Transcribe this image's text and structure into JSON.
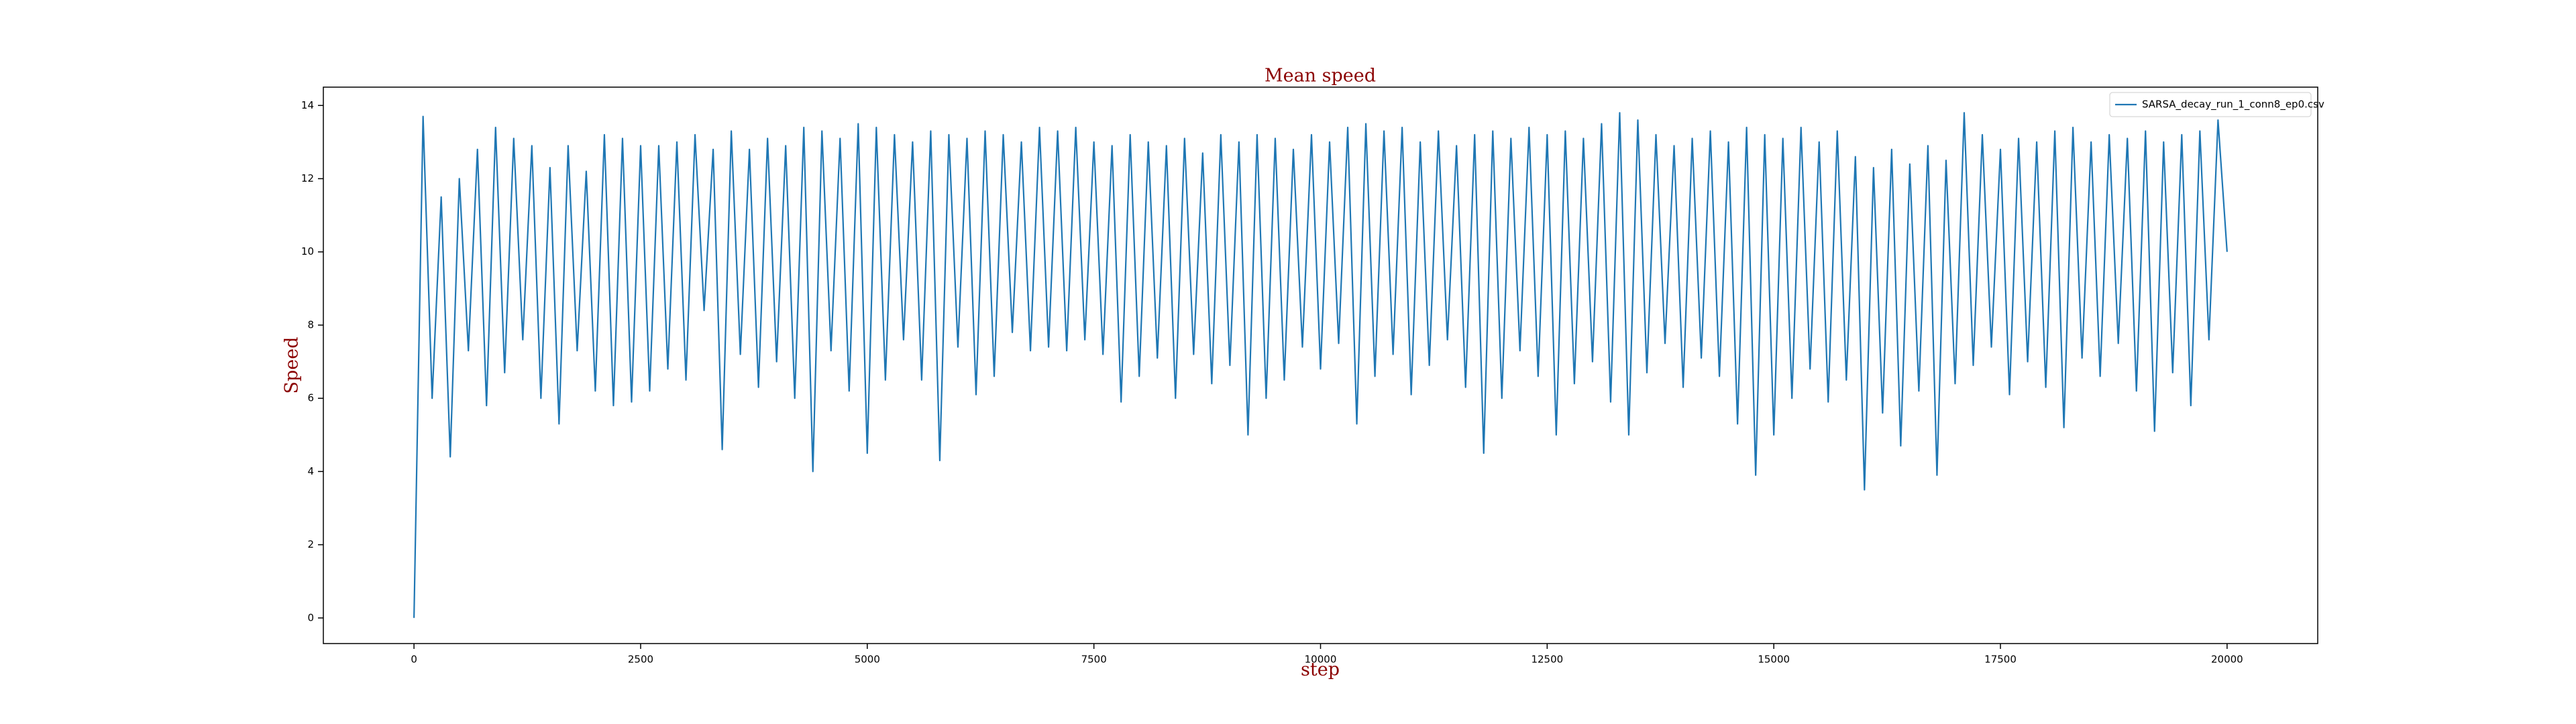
{
  "chart_data": {
    "type": "line",
    "title": "Mean speed",
    "x_label": "step",
    "y_label": "Speed",
    "x": [
      0,
      100,
      200,
      300,
      400,
      500,
      600,
      700,
      800,
      900,
      1000,
      1100,
      1200,
      1300,
      1400,
      1500,
      1600,
      1700,
      1800,
      1900,
      2000,
      2100,
      2200,
      2300,
      2400,
      2500,
      2600,
      2700,
      2800,
      2900,
      3000,
      3100,
      3200,
      3300,
      3400,
      3500,
      3600,
      3700,
      3800,
      3900,
      4000,
      4100,
      4200,
      4300,
      4400,
      4500,
      4600,
      4700,
      4800,
      4900,
      5000,
      5100,
      5200,
      5300,
      5400,
      5500,
      5600,
      5700,
      5800,
      5900,
      6000,
      6100,
      6200,
      6300,
      6400,
      6500,
      6600,
      6700,
      6800,
      6900,
      7000,
      7100,
      7200,
      7300,
      7400,
      7500,
      7600,
      7700,
      7800,
      7900,
      8000,
      8100,
      8200,
      8300,
      8400,
      8500,
      8600,
      8700,
      8800,
      8900,
      9000,
      9100,
      9200,
      9300,
      9400,
      9500,
      9600,
      9700,
      9800,
      9900,
      10000,
      10100,
      10200,
      10300,
      10400,
      10500,
      10600,
      10700,
      10800,
      10900,
      11000,
      11100,
      11200,
      11300,
      11400,
      11500,
      11600,
      11700,
      11800,
      11900,
      12000,
      12100,
      12200,
      12300,
      12400,
      12500,
      12600,
      12700,
      12800,
      12900,
      13000,
      13100,
      13200,
      13300,
      13400,
      13500,
      13600,
      13700,
      13800,
      13900,
      14000,
      14100,
      14200,
      14300,
      14400,
      14500,
      14600,
      14700,
      14800,
      14900,
      15000,
      15100,
      15200,
      15300,
      15400,
      15500,
      15600,
      15700,
      15800,
      15900,
      16000,
      16100,
      16200,
      16300,
      16400,
      16500,
      16600,
      16700,
      16800,
      16900,
      17000,
      17100,
      17200,
      17300,
      17400,
      17500,
      17600,
      17700,
      17800,
      17900,
      18000,
      18100,
      18200,
      18300,
      18400,
      18500,
      18600,
      18700,
      18800,
      18900,
      19000,
      19100,
      19200,
      19300,
      19400,
      19500,
      19600,
      19700,
      19800,
      19900,
      20000
    ],
    "series": [
      {
        "name": "SARSA_decay_run_1_conn8_ep0.csv",
        "color": "#1f77b4",
        "values": [
          0,
          13.7,
          6.0,
          11.5,
          4.4,
          12.0,
          7.3,
          12.8,
          5.8,
          13.4,
          6.7,
          13.1,
          7.6,
          12.9,
          6.0,
          12.3,
          5.3,
          12.9,
          7.3,
          12.2,
          6.2,
          13.2,
          5.8,
          13.1,
          5.9,
          12.9,
          6.2,
          12.9,
          6.8,
          13.0,
          6.5,
          13.2,
          8.4,
          12.8,
          4.6,
          13.3,
          7.2,
          12.8,
          6.3,
          13.1,
          7.0,
          12.9,
          6.0,
          13.4,
          4.0,
          13.3,
          7.3,
          13.1,
          6.2,
          13.5,
          4.5,
          13.4,
          6.5,
          13.2,
          7.6,
          13.0,
          6.5,
          13.3,
          4.3,
          13.2,
          7.4,
          13.1,
          6.1,
          13.3,
          6.6,
          13.2,
          7.8,
          13.0,
          7.3,
          13.4,
          7.4,
          13.3,
          7.3,
          13.4,
          7.6,
          13.0,
          7.2,
          12.9,
          5.9,
          13.2,
          6.6,
          13.0,
          7.1,
          12.9,
          6.0,
          13.1,
          7.2,
          12.7,
          6.4,
          13.2,
          6.9,
          13.0,
          5.0,
          13.2,
          6.0,
          13.1,
          6.5,
          12.8,
          7.4,
          13.2,
          6.8,
          13.0,
          7.5,
          13.4,
          5.3,
          13.5,
          6.6,
          13.3,
          7.2,
          13.4,
          6.1,
          13.0,
          6.9,
          13.3,
          7.6,
          12.9,
          6.3,
          13.2,
          4.5,
          13.3,
          6.0,
          13.1,
          7.3,
          13.4,
          6.6,
          13.2,
          5.0,
          13.3,
          6.4,
          13.1,
          7.0,
          13.5,
          5.9,
          13.8,
          5.0,
          13.6,
          6.7,
          13.2,
          7.5,
          12.9,
          6.3,
          13.1,
          7.1,
          13.3,
          6.6,
          13.0,
          5.3,
          13.4,
          3.9,
          13.2,
          5.0,
          13.1,
          6.0,
          13.4,
          6.8,
          13.0,
          5.9,
          13.3,
          6.5,
          12.6,
          3.5,
          12.3,
          5.6,
          12.8,
          4.7,
          12.4,
          6.2,
          12.9,
          3.9,
          12.5,
          6.4,
          13.8,
          6.9,
          13.2,
          7.4,
          12.8,
          6.1,
          13.1,
          7.0,
          13.0,
          6.3,
          13.3,
          5.2,
          13.4,
          7.1,
          13.0,
          6.6,
          13.2,
          7.5,
          13.1,
          6.2,
          13.3,
          5.1,
          13.0,
          6.7,
          13.2,
          5.8,
          13.3,
          7.6,
          13.6,
          10.0
        ]
      }
    ],
    "xlim": [
      -1000,
      21000
    ],
    "ylim": [
      -0.7,
      14.5
    ],
    "xticks": [
      0,
      2500,
      5000,
      7500,
      10000,
      12500,
      15000,
      17500,
      20000
    ],
    "yticks": [
      0,
      2,
      4,
      6,
      8,
      10,
      12,
      14
    ],
    "legend": "upper right",
    "grid": false
  }
}
